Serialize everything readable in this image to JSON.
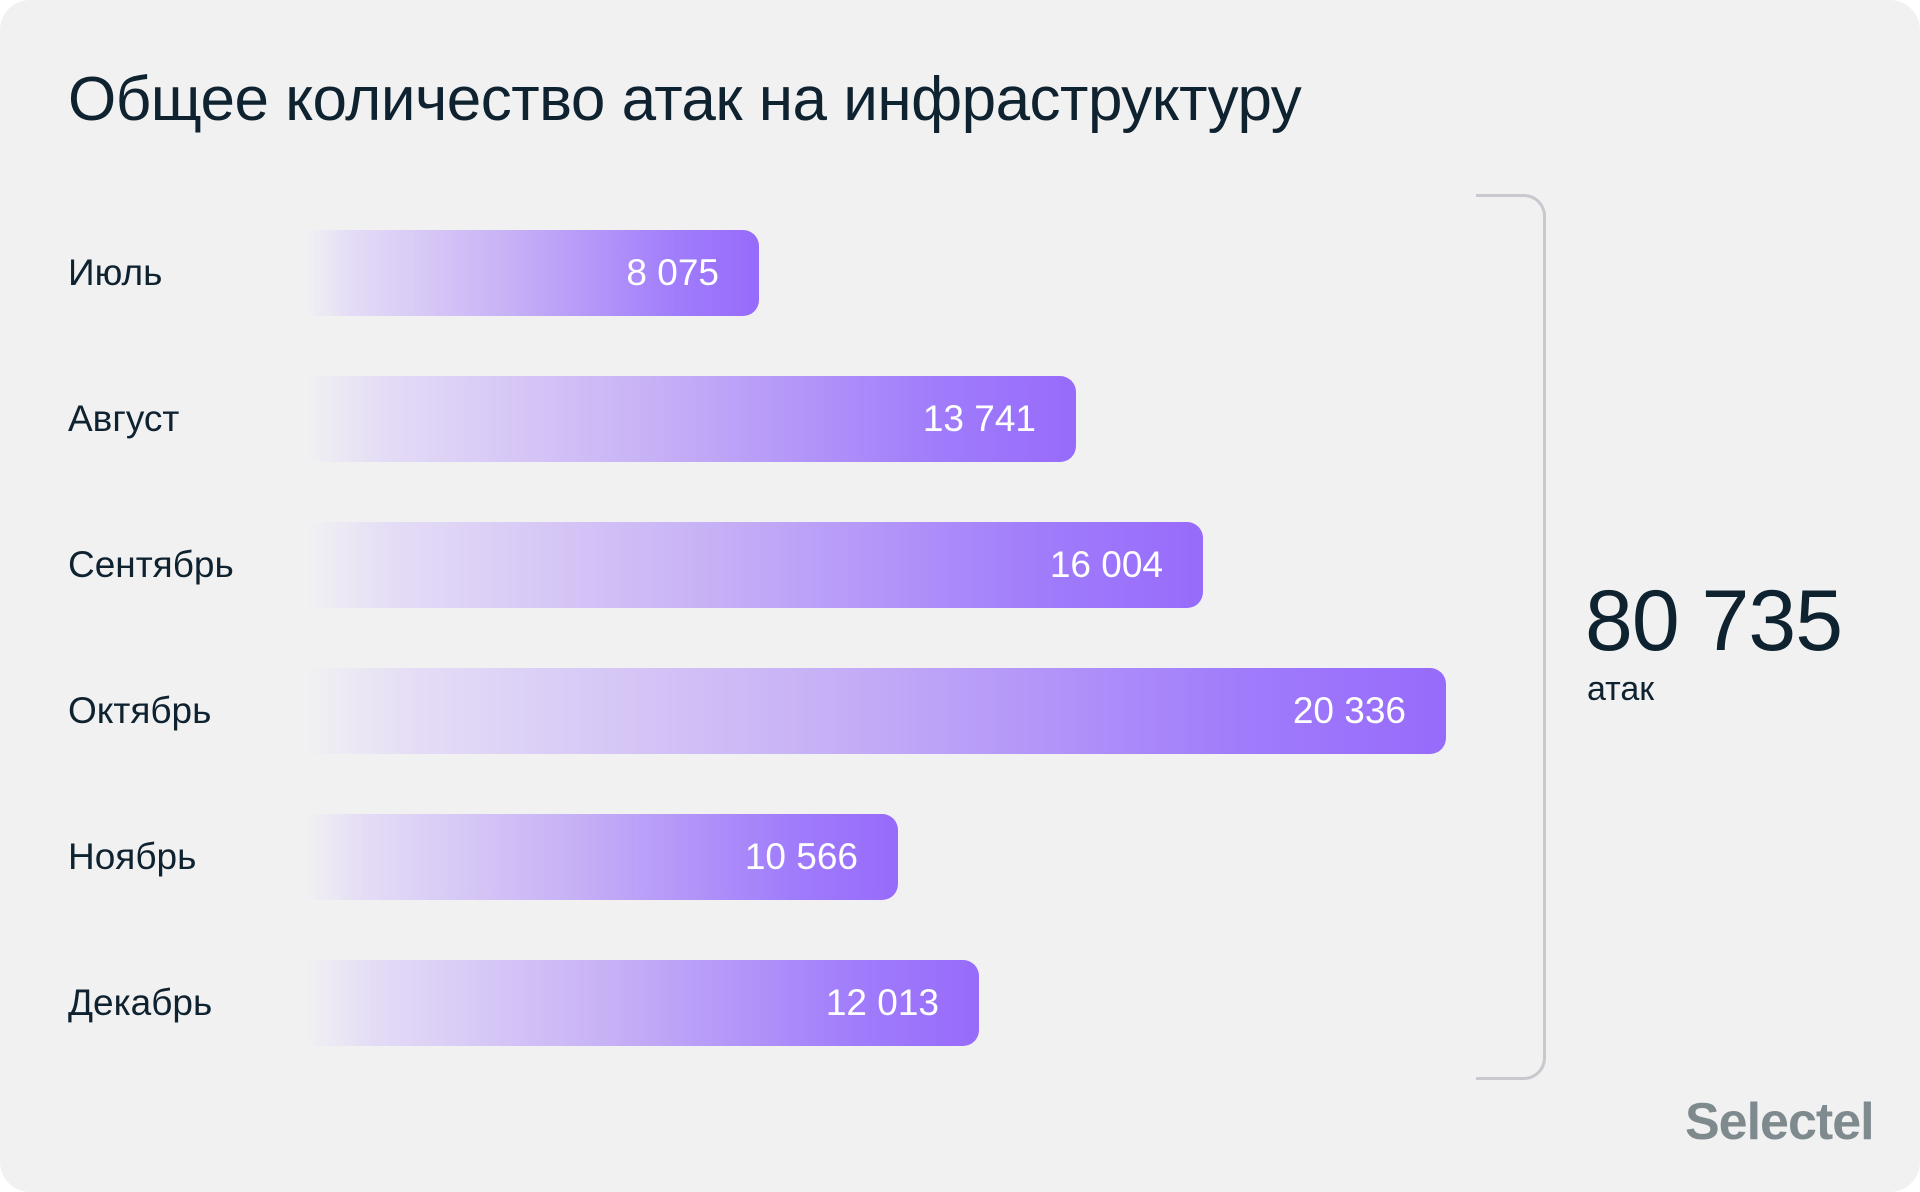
{
  "title": "Общее количество атак на инфраструктуру",
  "chart_data": {
    "type": "bar",
    "orientation": "horizontal",
    "title": "Общее количество атак на инфраструктуру",
    "categories": [
      "Июль",
      "Август",
      "Сентябрь",
      "Октябрь",
      "Ноябрь",
      "Декабрь"
    ],
    "values": [
      8075,
      13741,
      16004,
      20336,
      10566,
      12013
    ],
    "value_labels": [
      "8 075",
      "13 741",
      "16 004",
      "20 336",
      "10 566",
      "12 013"
    ],
    "total": {
      "value": "80 735",
      "unit": "атак"
    },
    "grid": false,
    "colors": {
      "bar_start": "#e4dcf6",
      "bar_end": "#976bfb",
      "background": "#f1f1f2",
      "text": "#0f2230"
    }
  },
  "logo": "Selectel"
}
